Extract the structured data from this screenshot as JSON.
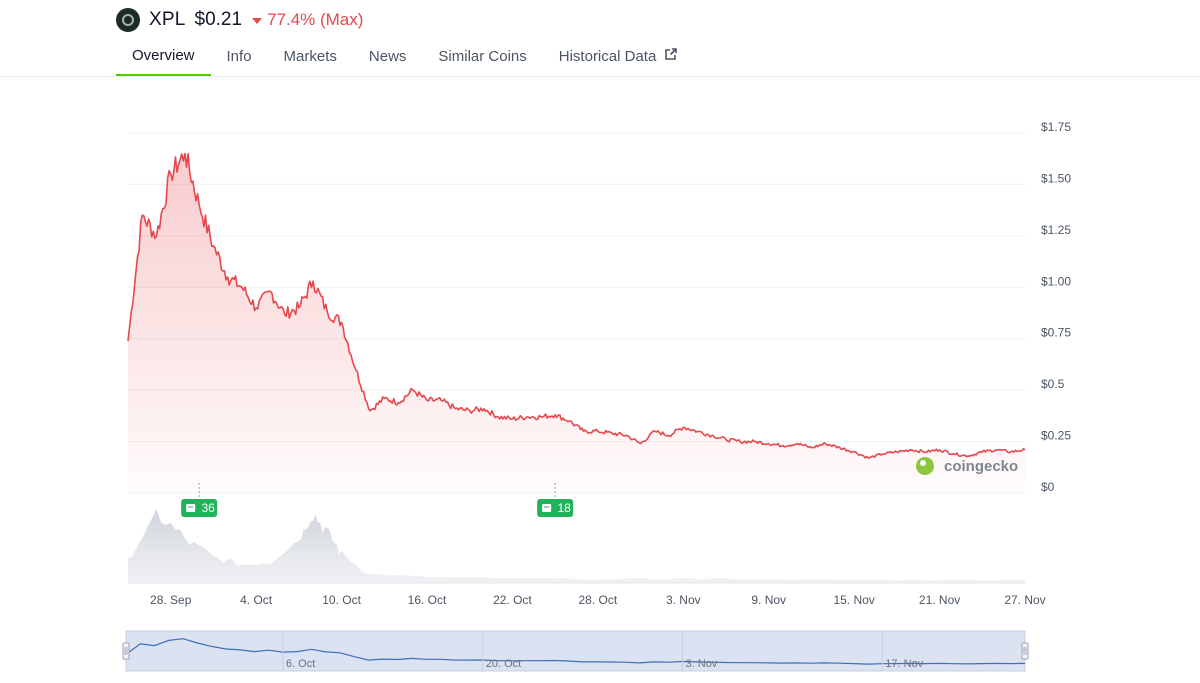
{
  "coin": {
    "symbol": "XPL",
    "price": "$0.21",
    "change": "77.4% (Max)",
    "change_direction": "down",
    "logo_icon": "xpl-logo-icon",
    "colors": {
      "down": "#e5484d",
      "accent": "#4bcc00"
    }
  },
  "tabs": [
    {
      "label": "Overview",
      "active": true
    },
    {
      "label": "Info"
    },
    {
      "label": "Markets"
    },
    {
      "label": "News"
    },
    {
      "label": "Similar Coins"
    },
    {
      "label": "Historical Data",
      "icon": "external-link-icon"
    }
  ],
  "watermark": "coingecko",
  "news_markers": [
    {
      "label": "36",
      "date": "2025-09-30",
      "icon": "newspaper-icon"
    },
    {
      "label": "18",
      "date": "2025-10-25",
      "icon": "newspaper-icon"
    }
  ],
  "navigator": {
    "labels": [
      "6. Oct",
      "20. Oct",
      "3. Nov",
      "17. Nov"
    ]
  },
  "chart_data": {
    "type": "area",
    "title": "",
    "line_color": "#e5484d",
    "x_ticks": [
      "28. Sep",
      "4. Oct",
      "10. Oct",
      "16. Oct",
      "22. Oct",
      "28. Oct",
      "3. Nov",
      "9. Nov",
      "15. Nov",
      "21. Nov",
      "27. Nov"
    ],
    "y_ticks": [
      "$1.75",
      "$1.50",
      "$1.25",
      "$1.00",
      "$0.75",
      "$0.5",
      "$0.25",
      "$0"
    ],
    "ylim": [
      0,
      1.75
    ],
    "xlim": [
      "2025-09-25",
      "2025-11-27"
    ],
    "grid": true,
    "series": [
      {
        "x": [
          "2025-09-25",
          "2025-09-26",
          "2025-09-27",
          "2025-09-28",
          "2025-09-29",
          "2025-09-30",
          "2025-10-01",
          "2025-10-02",
          "2025-10-03",
          "2025-10-04",
          "2025-10-05",
          "2025-10-06",
          "2025-10-07",
          "2025-10-08",
          "2025-10-09",
          "2025-10-10",
          "2025-10-11",
          "2025-10-12",
          "2025-10-13",
          "2025-10-14",
          "2025-10-15",
          "2025-10-16",
          "2025-10-17",
          "2025-10-18",
          "2025-10-19",
          "2025-10-20",
          "2025-10-21",
          "2025-10-22",
          "2025-10-23",
          "2025-10-24",
          "2025-10-25",
          "2025-10-26",
          "2025-10-27",
          "2025-10-28",
          "2025-10-29",
          "2025-10-30",
          "2025-10-31",
          "2025-11-01",
          "2025-11-02",
          "2025-11-03",
          "2025-11-04",
          "2025-11-05",
          "2025-11-06",
          "2025-11-07",
          "2025-11-08",
          "2025-11-09",
          "2025-11-10",
          "2025-11-11",
          "2025-11-12",
          "2025-11-13",
          "2025-11-14",
          "2025-11-15",
          "2025-11-16",
          "2025-11-17",
          "2025-11-18",
          "2025-11-19",
          "2025-11-20",
          "2025-11-21",
          "2025-11-22",
          "2025-11-23",
          "2025-11-24",
          "2025-11-25",
          "2025-11-26",
          "2025-11-27"
        ],
        "y": [
          0.74,
          1.35,
          1.25,
          1.55,
          1.65,
          1.4,
          1.2,
          1.05,
          1.0,
          0.9,
          0.98,
          0.87,
          0.9,
          1.03,
          0.88,
          0.83,
          0.6,
          0.4,
          0.46,
          0.44,
          0.5,
          0.45,
          0.45,
          0.41,
          0.4,
          0.41,
          0.37,
          0.36,
          0.37,
          0.37,
          0.38,
          0.35,
          0.3,
          0.3,
          0.29,
          0.28,
          0.24,
          0.3,
          0.28,
          0.32,
          0.3,
          0.28,
          0.26,
          0.25,
          0.25,
          0.24,
          0.23,
          0.24,
          0.22,
          0.24,
          0.22,
          0.2,
          0.17,
          0.19,
          0.2,
          0.21,
          0.2,
          0.21,
          0.19,
          0.18,
          0.2,
          0.21,
          0.2,
          0.21
        ]
      }
    ],
    "volume": {
      "x": [
        "2025-09-25",
        "2025-09-27",
        "2025-09-29",
        "2025-10-01",
        "2025-10-03",
        "2025-10-05",
        "2025-10-07",
        "2025-10-08",
        "2025-10-09",
        "2025-10-10",
        "2025-10-12",
        "2025-10-16",
        "2025-10-22",
        "2025-10-28",
        "2025-11-03",
        "2025-11-09",
        "2025-11-15",
        "2025-11-21",
        "2025-11-27"
      ],
      "y": [
        30,
        95,
        60,
        35,
        25,
        28,
        60,
        95,
        70,
        40,
        12,
        8,
        6,
        5,
        6,
        5,
        4,
        4,
        4
      ]
    }
  }
}
